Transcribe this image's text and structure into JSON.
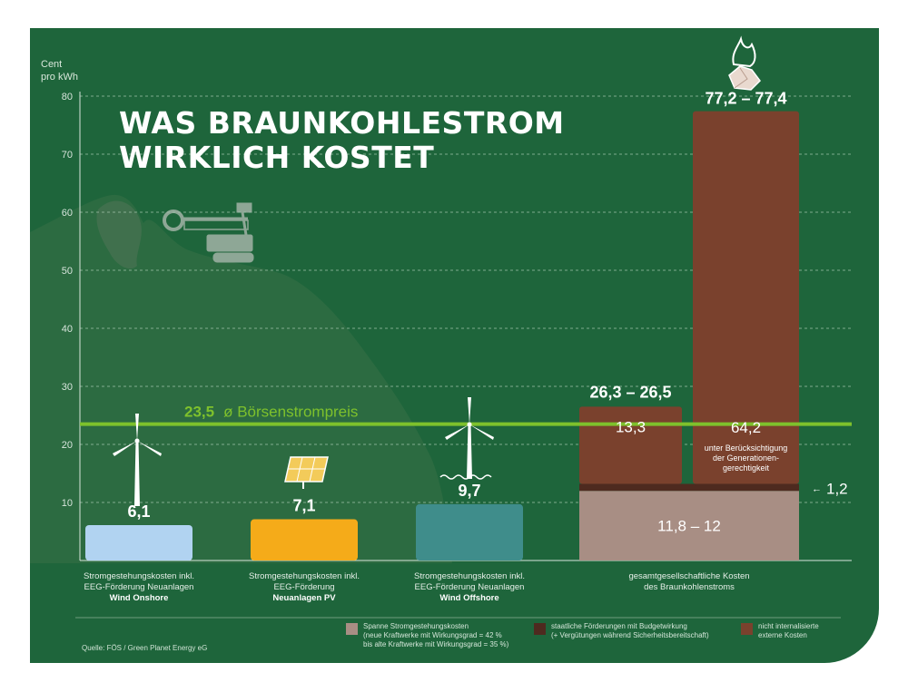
{
  "title": [
    "WAS BRAUNKOHLESTROM",
    "WIRKLICH KOSTET"
  ],
  "y_unit": [
    "Cent",
    "pro kWh"
  ],
  "source": "Quelle: FÖS / Green Planet Energy eG",
  "colors": {
    "background": "#1e653b",
    "wind_onshore": "#b1d3f1",
    "solar_pv": "#f5ab19",
    "wind_offshore": "#3f8d8b",
    "generation_cost": "#a88e84",
    "subsidies": "#4e2a1f",
    "external_costs": "#7a412d",
    "market_price_line": "#7ec12c"
  },
  "chart_data": {
    "type": "bar",
    "ylim": [
      0,
      80
    ],
    "yticks": [
      10,
      20,
      30,
      40,
      50,
      60,
      70,
      80
    ],
    "grid": true,
    "reference_line": {
      "value": 23.5,
      "label_value": "23,5",
      "label_text": "ø Börsenstrompreis"
    },
    "bars": [
      {
        "key": "onshore",
        "value": 6.1,
        "value_label": "6,1",
        "color": "#b1d3f1",
        "label_lines": [
          "Stromgestehungskosten inkl.",
          "EEG-Förderung Neuanlagen"
        ],
        "label_bold": "Wind Onshore"
      },
      {
        "key": "pv",
        "value": 7.1,
        "value_label": "7,1",
        "color": "#f5ab19",
        "label_lines": [
          "Stromgestehungskosten inkl.",
          "EEG-Förderung"
        ],
        "label_bold": "Neuanlagen PV"
      },
      {
        "key": "offshore",
        "value": 9.7,
        "value_label": "9,7",
        "color": "#3f8d8b",
        "label_lines": [
          "Stromgestehungskosten inkl.",
          "EEG-Förderung Neuanlagen"
        ],
        "label_bold": "Wind Offshore"
      }
    ],
    "lignite": {
      "label_lines": [
        "gesamtgesellschaftliche Kosten",
        "des Braunkohlenstroms"
      ],
      "base": {
        "value": 12,
        "label": "11,8 – 12"
      },
      "subsidy": {
        "value": 1.2,
        "label": "1,2"
      },
      "bar_a": {
        "external": 13.3,
        "external_label": "13,3",
        "total_label": "26,3 – 26,5",
        "total": 26.5
      },
      "bar_b": {
        "external": 64.2,
        "external_label": "64,2",
        "total_label": "77,2 – 77,4",
        "total": 77.4,
        "note": [
          "unter Berücksichtigung",
          "der Generationen-",
          "gerechtigkeit"
        ]
      }
    },
    "legend": [
      {
        "color": "#a88e84",
        "lines": [
          "Spanne Stromgestehungskosten",
          "(neue Kraftwerke mit Wirkungsgrad = 42 %",
          "bis alte Kraftwerke mit Wirkungsgrad = 35 %)"
        ]
      },
      {
        "color": "#4e2a1f",
        "lines": [
          "staatliche Förderungen mit Budgetwirkung",
          "(+ Vergütungen während Sicherheitsbereitschaft)"
        ]
      },
      {
        "color": "#7a412d",
        "lines": [
          "nicht internalisierte",
          "externe Kosten"
        ]
      }
    ]
  }
}
